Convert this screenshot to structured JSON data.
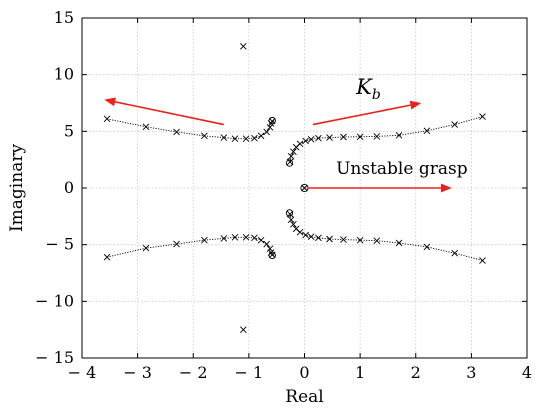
{
  "chart_data": {
    "type": "scatter",
    "xlabel": "Real",
    "ylabel": "Imaginary",
    "xlim": [
      -4,
      4
    ],
    "ylim": [
      -15,
      15
    ],
    "xticks": [
      -4,
      -3,
      -2,
      -1,
      0,
      1,
      2,
      3,
      4
    ],
    "yticks": [
      -15,
      -10,
      -5,
      0,
      5,
      10,
      15
    ],
    "xtick_labels": [
      "− 4",
      "− 3",
      "− 2",
      "− 1",
      "0",
      "1",
      "2",
      "3",
      "4"
    ],
    "ytick_labels": [
      "− 15",
      "− 10",
      "− 5",
      "0",
      "5",
      "10",
      "15"
    ],
    "grid": true,
    "series": [
      {
        "marker": "x",
        "line": "dotted",
        "points": [
          [
            -3.55,
            6.1
          ],
          [
            -2.85,
            5.4
          ],
          [
            -2.3,
            4.95
          ],
          [
            -1.8,
            4.6
          ],
          [
            -1.45,
            4.45
          ],
          [
            -1.25,
            4.35
          ],
          [
            -1.05,
            4.35
          ],
          [
            -0.9,
            4.4
          ],
          [
            -0.78,
            4.6
          ],
          [
            -0.68,
            4.95
          ],
          [
            -0.62,
            5.35
          ],
          [
            -0.6,
            5.7
          ],
          [
            -0.58,
            5.9
          ]
        ]
      },
      {
        "marker": "x",
        "line": "dotted",
        "points": [
          [
            -3.55,
            -6.1
          ],
          [
            -2.85,
            -5.3
          ],
          [
            -2.3,
            -4.95
          ],
          [
            -1.8,
            -4.6
          ],
          [
            -1.45,
            -4.45
          ],
          [
            -1.25,
            -4.35
          ],
          [
            -1.05,
            -4.35
          ],
          [
            -0.9,
            -4.4
          ],
          [
            -0.78,
            -4.6
          ],
          [
            -0.68,
            -4.95
          ],
          [
            -0.62,
            -5.35
          ],
          [
            -0.6,
            -5.7
          ],
          [
            -0.58,
            -5.9
          ]
        ]
      },
      {
        "marker": "x",
        "line": "dotted",
        "points": [
          [
            -0.26,
            2.3
          ],
          [
            -0.24,
            2.8
          ],
          [
            -0.2,
            3.2
          ],
          [
            -0.15,
            3.6
          ],
          [
            -0.08,
            3.9
          ],
          [
            0.02,
            4.15
          ],
          [
            0.12,
            4.3
          ],
          [
            0.25,
            4.4
          ],
          [
            0.45,
            4.45
          ],
          [
            0.7,
            4.5
          ],
          [
            1.0,
            4.52
          ],
          [
            1.3,
            4.55
          ],
          [
            1.7,
            4.65
          ],
          [
            2.2,
            5.05
          ],
          [
            2.7,
            5.6
          ],
          [
            3.2,
            6.3
          ]
        ]
      },
      {
        "marker": "x",
        "line": "dotted",
        "points": [
          [
            -0.26,
            -2.3
          ],
          [
            -0.24,
            -2.8
          ],
          [
            -0.2,
            -3.2
          ],
          [
            -0.15,
            -3.6
          ],
          [
            -0.08,
            -3.9
          ],
          [
            0.02,
            -4.15
          ],
          [
            0.12,
            -4.3
          ],
          [
            0.25,
            -4.4
          ],
          [
            0.45,
            -4.5
          ],
          [
            0.7,
            -4.55
          ],
          [
            1.0,
            -4.6
          ],
          [
            1.3,
            -4.65
          ],
          [
            1.7,
            -4.85
          ],
          [
            2.2,
            -5.2
          ],
          [
            2.7,
            -5.75
          ],
          [
            3.2,
            -6.4
          ]
        ]
      }
    ],
    "poles_isolated": [
      [
        -1.1,
        12.5
      ],
      [
        -1.1,
        -12.5
      ]
    ],
    "zeros": [
      [
        -0.58,
        5.95
      ],
      [
        -0.58,
        -5.95
      ],
      [
        -0.27,
        2.2
      ],
      [
        -0.27,
        -2.2
      ]
    ],
    "origin_marker": [
      0,
      0
    ],
    "arrows": [
      {
        "from": [
          -1.45,
          5.6
        ],
        "to": [
          -3.6,
          7.8
        ]
      },
      {
        "from": [
          0.15,
          5.6
        ],
        "to": [
          2.1,
          7.5
        ]
      },
      {
        "from": [
          0.05,
          0
        ],
        "to": [
          2.65,
          0
        ]
      }
    ],
    "annotations": [
      {
        "text": "K",
        "subscript": "b",
        "x": 1.15,
        "y": 8.3
      },
      {
        "text": "Unstable grasp",
        "x": 1.75,
        "y": 1.25
      }
    ]
  }
}
